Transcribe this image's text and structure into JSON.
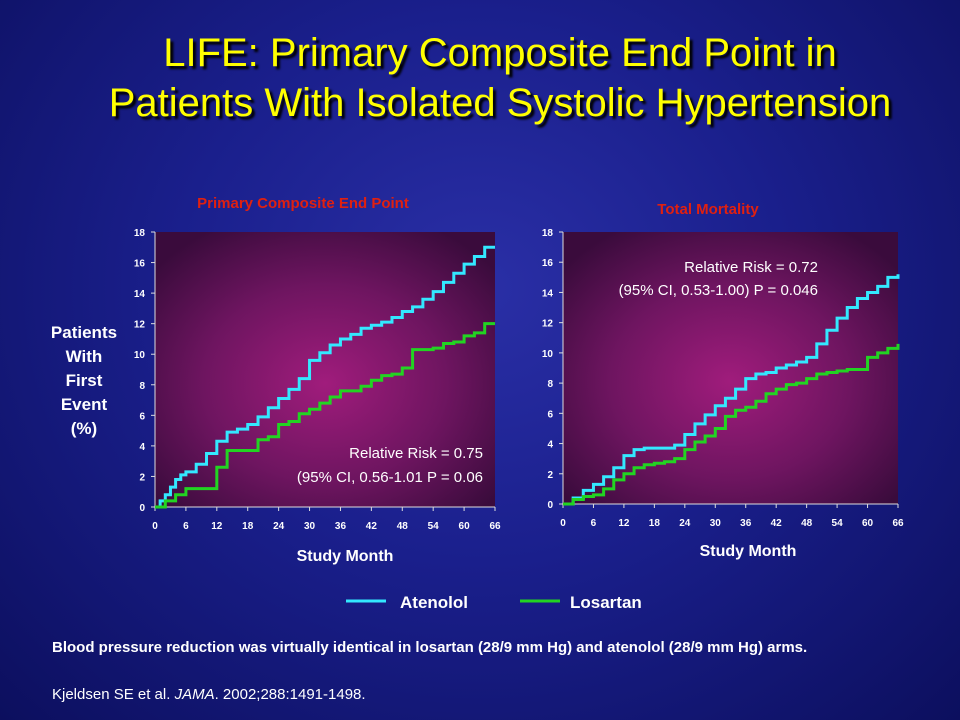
{
  "slide": {
    "title_line1": "LIFE: Primary Composite End Point in",
    "title_line2": "Patients With Isolated Systolic Hypertension",
    "footnote": "Blood pressure reduction was virtually identical in losartan (28/9 mm Hg) and atenolol (28/9 mm Hg) arms.",
    "citation_pre": "Kjeldsen SE et al. ",
    "citation_journal": "JAMA",
    "citation_post": ". 2002;288:1491-1498."
  },
  "colors": {
    "title": "#ffff00",
    "chart_title": "#e02010",
    "atenolol": "#33e8ff",
    "losartan": "#22d422",
    "axis_text": "#ffffff"
  },
  "legend": [
    {
      "name": "Atenolol",
      "color": "#33e8ff"
    },
    {
      "name": "Losartan",
      "color": "#22d422"
    }
  ],
  "chart_data": [
    {
      "type": "line",
      "step": true,
      "title": "Primary Composite End Point",
      "xlabel": "Study Month",
      "ylabel_lines": [
        "Patients",
        "With",
        "First",
        "Event",
        "(%)"
      ],
      "xticks": [
        0,
        6,
        12,
        18,
        24,
        30,
        36,
        42,
        48,
        54,
        60,
        66
      ],
      "yticks": [
        0,
        2,
        4,
        6,
        8,
        10,
        12,
        14,
        16,
        18
      ],
      "xlim": [
        0,
        66
      ],
      "ylim": [
        0,
        18
      ],
      "annotation_lines": [
        "Relative Risk = 0.75",
        "(95% CI, 0.56-1.01 P = 0.06"
      ],
      "series": [
        {
          "name": "Atenolol",
          "color": "#33e8ff",
          "x": [
            0,
            1,
            2,
            3,
            4,
            5,
            6,
            8,
            10,
            12,
            14,
            16,
            18,
            20,
            22,
            24,
            26,
            28,
            30,
            32,
            34,
            36,
            38,
            40,
            42,
            44,
            46,
            48,
            50,
            52,
            54,
            56,
            58,
            60,
            62,
            64,
            66
          ],
          "y": [
            0,
            0.4,
            0.8,
            1.3,
            1.8,
            2.1,
            2.3,
            2.8,
            3.5,
            4.3,
            4.9,
            5.1,
            5.4,
            5.9,
            6.5,
            7.1,
            7.7,
            8.4,
            9.6,
            10.1,
            10.6,
            11.0,
            11.3,
            11.7,
            11.9,
            12.1,
            12.4,
            12.8,
            13.1,
            13.6,
            14.1,
            14.7,
            15.3,
            15.9,
            16.4,
            17.0,
            17.0
          ]
        },
        {
          "name": "Losartan",
          "color": "#22d422",
          "x": [
            0,
            2,
            4,
            6,
            8,
            10,
            12,
            14,
            16,
            18,
            20,
            22,
            24,
            26,
            28,
            30,
            32,
            34,
            36,
            38,
            40,
            42,
            44,
            46,
            48,
            50,
            52,
            54,
            56,
            58,
            60,
            62,
            64,
            66
          ],
          "y": [
            0,
            0.4,
            0.8,
            1.2,
            1.2,
            1.2,
            2.6,
            3.7,
            3.7,
            3.7,
            4.4,
            4.6,
            5.4,
            5.6,
            6.1,
            6.4,
            6.8,
            7.2,
            7.6,
            7.6,
            7.9,
            8.3,
            8.6,
            8.7,
            9.1,
            10.3,
            10.3,
            10.4,
            10.7,
            10.8,
            11.2,
            11.4,
            12.0,
            12.0
          ]
        }
      ]
    },
    {
      "type": "line",
      "step": true,
      "title": "Total Mortality",
      "xlabel": "Study Month",
      "xticks": [
        0,
        6,
        12,
        18,
        24,
        30,
        36,
        42,
        48,
        54,
        60,
        66
      ],
      "yticks": [
        0,
        2,
        4,
        6,
        8,
        10,
        12,
        14,
        16,
        18
      ],
      "xlim": [
        0,
        66
      ],
      "ylim": [
        0,
        18
      ],
      "annotation_lines": [
        "Relative Risk = 0.72",
        "(95% CI, 0.53-1.00) P = 0.046"
      ],
      "series": [
        {
          "name": "Atenolol",
          "color": "#33e8ff",
          "x": [
            0,
            2,
            4,
            6,
            8,
            10,
            12,
            14,
            16,
            18,
            20,
            22,
            24,
            26,
            28,
            30,
            32,
            34,
            36,
            38,
            40,
            42,
            44,
            46,
            48,
            50,
            52,
            54,
            56,
            58,
            60,
            62,
            64,
            66
          ],
          "y": [
            0,
            0.4,
            0.9,
            1.3,
            1.8,
            2.4,
            3.2,
            3.6,
            3.7,
            3.7,
            3.7,
            3.9,
            4.6,
            5.3,
            5.9,
            6.5,
            7.0,
            7.6,
            8.3,
            8.6,
            8.7,
            9.0,
            9.2,
            9.4,
            9.7,
            10.6,
            11.5,
            12.3,
            13.0,
            13.6,
            14.0,
            14.4,
            15.0,
            15.2
          ]
        },
        {
          "name": "Losartan",
          "color": "#22d422",
          "x": [
            0,
            2,
            4,
            6,
            8,
            10,
            12,
            14,
            16,
            18,
            20,
            22,
            24,
            26,
            28,
            30,
            32,
            34,
            36,
            38,
            40,
            42,
            44,
            46,
            48,
            50,
            52,
            54,
            56,
            58,
            60,
            62,
            64,
            66
          ],
          "y": [
            0,
            0.3,
            0.5,
            0.6,
            1.0,
            1.6,
            2.0,
            2.4,
            2.6,
            2.7,
            2.8,
            3.0,
            3.6,
            4.1,
            4.5,
            5.0,
            5.8,
            6.2,
            6.4,
            6.8,
            7.3,
            7.6,
            7.9,
            8.0,
            8.3,
            8.6,
            8.7,
            8.8,
            8.9,
            8.9,
            9.7,
            10.0,
            10.3,
            10.6
          ]
        }
      ]
    }
  ]
}
